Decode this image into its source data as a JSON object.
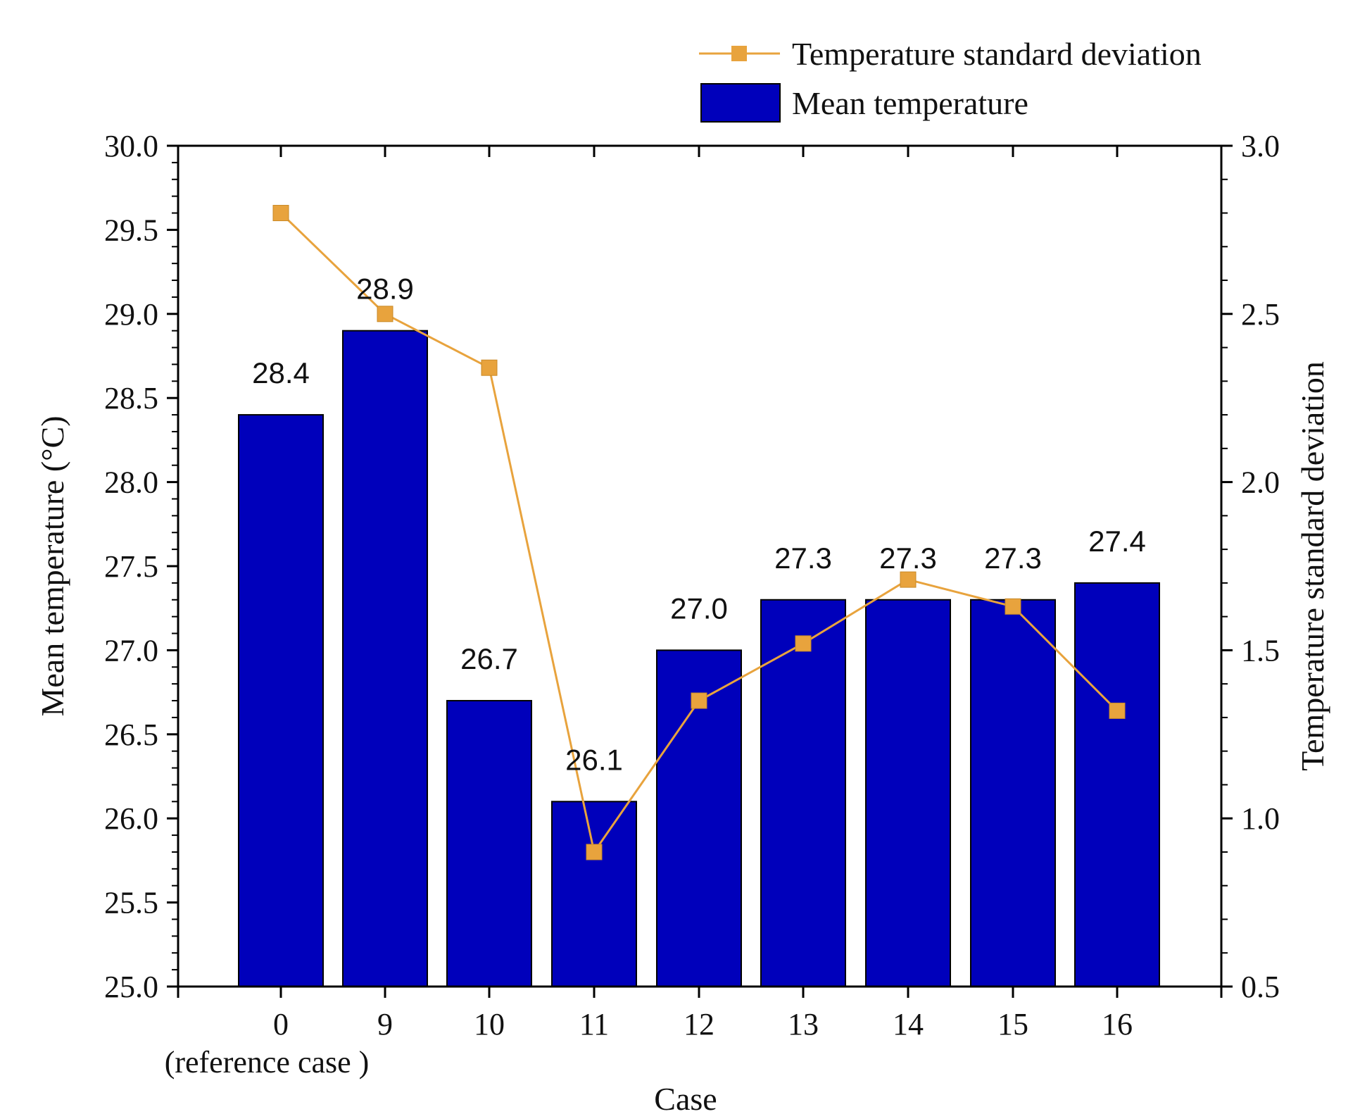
{
  "chart_data": {
    "type": "bar+line",
    "categories": [
      "0",
      "9",
      "10",
      "11",
      "12",
      "13",
      "14",
      "15",
      "16"
    ],
    "category_sublabel": {
      "index": 0,
      "text": "(reference case )"
    },
    "xlabel": "Case",
    "ylabel": "Mean temperature (°C)",
    "ylabel_right": "Temperature standard deviation",
    "ylim": [
      25.0,
      30.0
    ],
    "ylim_right": [
      0.5,
      3.0
    ],
    "yticks": [
      "25.0",
      "25.5",
      "26.0",
      "26.5",
      "27.0",
      "27.5",
      "28.0",
      "28.5",
      "29.0",
      "29.5",
      "30.0"
    ],
    "yticks_right": [
      "0.5",
      "1.0",
      "1.5",
      "2.0",
      "2.5",
      "3.0"
    ],
    "series": [
      {
        "name": "Mean temperature",
        "type": "bar",
        "axis": "left",
        "color": "#0000BB",
        "values": [
          28.4,
          28.9,
          26.7,
          26.1,
          27.0,
          27.3,
          27.3,
          27.3,
          27.4
        ],
        "labels": [
          "28.4",
          "28.9",
          "26.7",
          "26.1",
          "27.0",
          "27.3",
          "27.3",
          "27.3",
          "27.4"
        ]
      },
      {
        "name": "Temperature standard deviation",
        "type": "line",
        "axis": "right",
        "color": "#E8A33D",
        "values": [
          2.8,
          2.5,
          2.34,
          0.9,
          1.35,
          1.52,
          1.71,
          1.63,
          1.32
        ]
      }
    ],
    "legend": {
      "position": "top-right",
      "entries": [
        "Temperature standard deviation",
        "Mean temperature"
      ]
    }
  }
}
